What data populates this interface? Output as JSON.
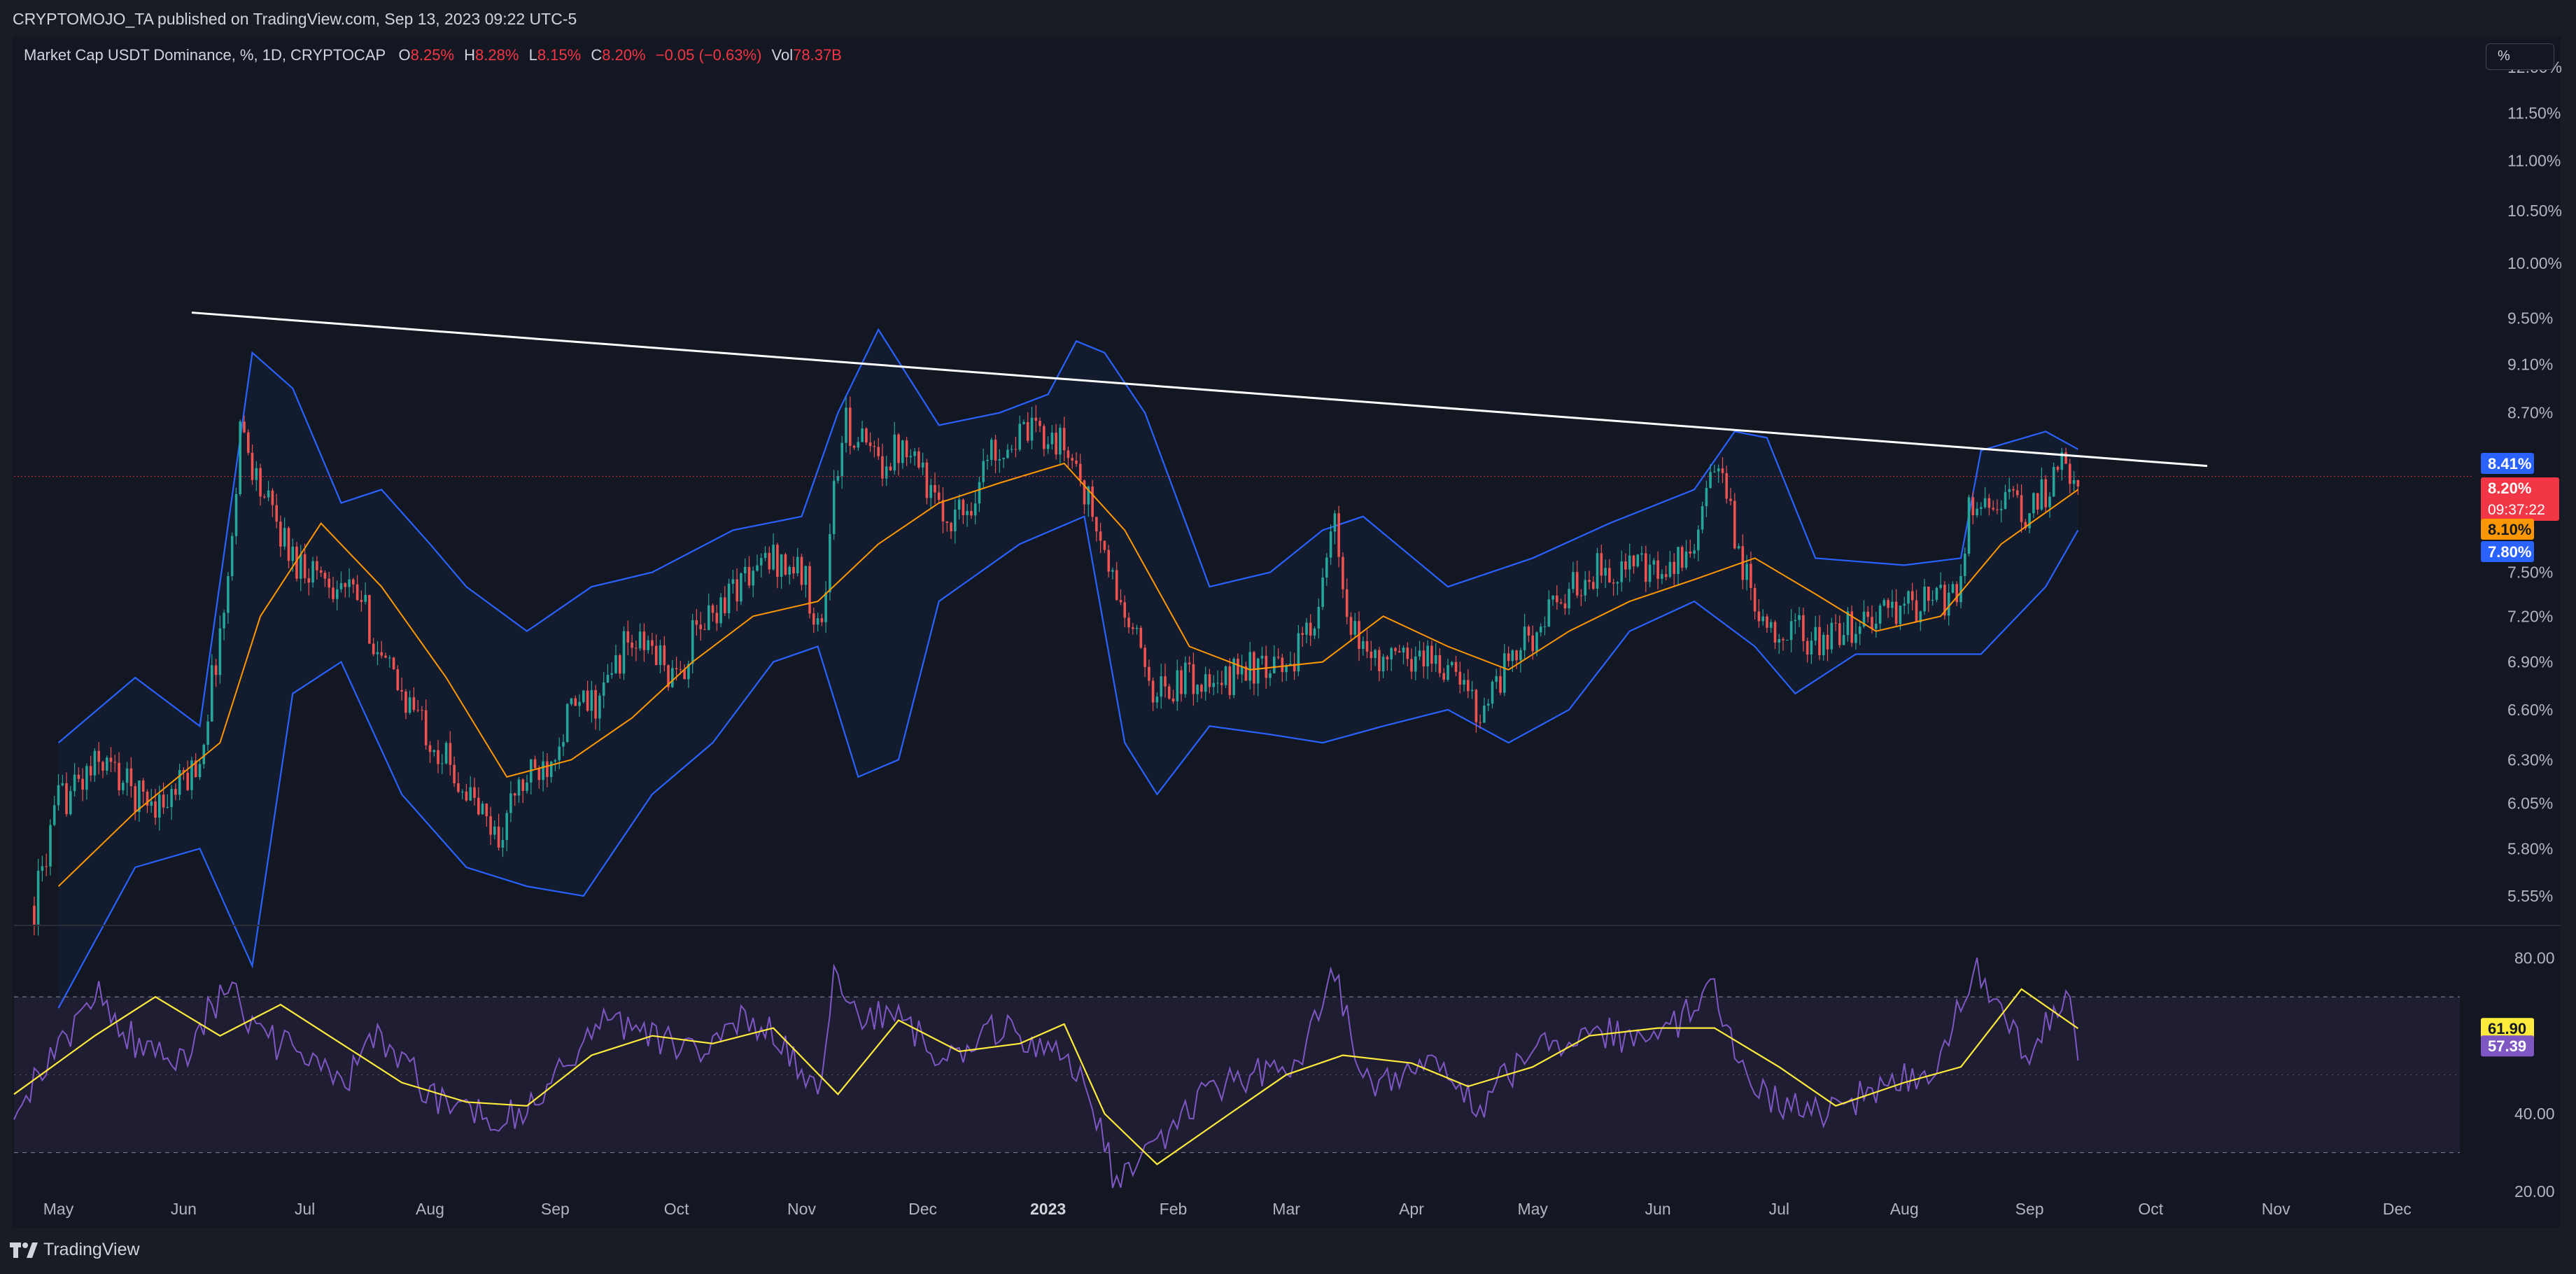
{
  "header": {
    "attribution": "CRYPTOMOJO_TA published on TradingView.com, Sep 13, 2023 09:22 UTC-5"
  },
  "legend": {
    "symbol": "Market Cap USDT Dominance, %, 1D, CRYPTOCAP",
    "open_label": "O",
    "open": "8.25%",
    "high_label": "H",
    "high": "8.28%",
    "low_label": "L",
    "low": "8.15%",
    "close_label": "C",
    "close": "8.20%",
    "change": "−0.05 (−0.63%)",
    "volume_label": "Vol",
    "volume": "78.37B"
  },
  "toolbar": {
    "scale_mode": "%"
  },
  "badges": {
    "upper_band": "8.41%",
    "last_price": "8.20%",
    "countdown": "09:37:22",
    "basis": "8.10%",
    "lower_band": "7.80%",
    "rsi_ma": "61.90",
    "rsi": "57.39"
  },
  "footer": {
    "brand": "TradingView"
  },
  "colors": {
    "background": "#131722",
    "up_candle": "#26a69a",
    "down_candle": "#ef5350",
    "band": "#2962ff",
    "basis": "#ff9800",
    "trendline": "#ffffff",
    "rsi": "#7e57c2",
    "rsi_ma": "#ffeb3b",
    "price_line": "#f23645"
  },
  "chart_data": [
    {
      "type": "candlestick",
      "title": "Market Cap USDT Dominance, %, 1D, CRYPTOCAP",
      "ylabel": "%",
      "y_scale": "log",
      "ylim": [
        5.4,
        12.3
      ],
      "y_ticks": [
        "12.00%",
        "11.50%",
        "11.00%",
        "10.50%",
        "10.00%",
        "9.50%",
        "9.10%",
        "8.70%",
        "7.50%",
        "7.20%",
        "6.90%",
        "6.60%",
        "6.30%",
        "6.05%",
        "5.80%",
        "5.55%"
      ],
      "x_ticks": [
        "May",
        "Jun",
        "Jul",
        "Aug",
        "Sep",
        "Oct",
        "Nov",
        "Dec",
        "2023",
        "Feb",
        "Mar",
        "Apr",
        "May",
        "Jun",
        "Jul",
        "Aug",
        "Sep",
        "Oct",
        "Nov",
        "Dec"
      ],
      "x_range": [
        "2022-04-20",
        "2023-12-20"
      ],
      "close_path": [
        [
          "2022-04-25",
          5.5
        ],
        [
          "2022-05-01",
          6.05
        ],
        [
          "2022-05-12",
          6.3
        ],
        [
          "2022-05-20",
          6.1
        ],
        [
          "2022-05-28",
          6.05
        ],
        [
          "2022-06-05",
          6.3
        ],
        [
          "2022-06-12",
          7.4
        ],
        [
          "2022-06-15",
          8.6
        ],
        [
          "2022-06-20",
          8.1
        ],
        [
          "2022-06-28",
          7.6
        ],
        [
          "2022-07-05",
          7.5
        ],
        [
          "2022-07-15",
          7.3
        ],
        [
          "2022-07-20",
          6.9
        ],
        [
          "2022-07-28",
          6.6
        ],
        [
          "2022-08-05",
          6.3
        ],
        [
          "2022-08-12",
          6.05
        ],
        [
          "2022-08-18",
          5.85
        ],
        [
          "2022-08-22",
          6.1
        ],
        [
          "2022-08-30",
          6.3
        ],
        [
          "2022-09-05",
          6.6
        ],
        [
          "2022-09-12",
          6.65
        ],
        [
          "2022-09-18",
          7.0
        ],
        [
          "2022-09-25",
          7.0
        ],
        [
          "2022-10-01",
          6.75
        ],
        [
          "2022-10-05",
          7.05
        ],
        [
          "2022-10-15",
          7.4
        ],
        [
          "2022-10-25",
          7.6
        ],
        [
          "2022-11-01",
          7.5
        ],
        [
          "2022-11-06",
          7.1
        ],
        [
          "2022-11-09",
          8.1
        ],
        [
          "2022-11-12",
          8.6
        ],
        [
          "2022-11-20",
          8.3
        ],
        [
          "2022-11-28",
          8.5
        ],
        [
          "2022-12-05",
          7.9
        ],
        [
          "2022-12-12",
          7.95
        ],
        [
          "2022-12-18",
          8.4
        ],
        [
          "2022-12-25",
          8.5
        ],
        [
          "2023-01-01",
          8.55
        ],
        [
          "2023-01-08",
          8.3
        ],
        [
          "2023-01-15",
          7.6
        ],
        [
          "2023-01-20",
          7.2
        ],
        [
          "2023-01-28",
          6.7
        ],
        [
          "2023-02-05",
          6.8
        ],
        [
          "2023-02-12",
          6.7
        ],
        [
          "2023-02-18",
          6.9
        ],
        [
          "2023-02-25",
          6.8
        ],
        [
          "2023-03-05",
          7.0
        ],
        [
          "2023-03-10",
          7.4
        ],
        [
          "2023-03-13",
          7.85
        ],
        [
          "2023-03-16",
          7.1
        ],
        [
          "2023-03-25",
          6.9
        ],
        [
          "2023-04-05",
          6.95
        ],
        [
          "2023-04-12",
          6.8
        ],
        [
          "2023-04-18",
          6.6
        ],
        [
          "2023-04-25",
          6.9
        ],
        [
          "2023-05-05",
          7.2
        ],
        [
          "2023-05-15",
          7.5
        ],
        [
          "2023-05-25",
          7.55
        ],
        [
          "2023-06-01",
          7.45
        ],
        [
          "2023-06-08",
          7.6
        ],
        [
          "2023-06-13",
          8.0
        ],
        [
          "2023-06-15",
          8.3
        ],
        [
          "2023-06-20",
          7.8
        ],
        [
          "2023-06-25",
          7.2
        ],
        [
          "2023-07-05",
          7.1
        ],
        [
          "2023-07-12",
          7.0
        ],
        [
          "2023-07-20",
          7.15
        ],
        [
          "2023-08-01",
          7.25
        ],
        [
          "2023-08-10",
          7.3
        ],
        [
          "2023-08-15",
          7.4
        ],
        [
          "2023-08-17",
          8.0
        ],
        [
          "2023-08-24",
          8.05
        ],
        [
          "2023-08-31",
          7.9
        ],
        [
          "2023-09-05",
          8.1
        ],
        [
          "2023-09-10",
          8.3
        ],
        [
          "2023-09-13",
          8.2
        ]
      ],
      "bollinger_upper": [
        [
          "2022-05-01",
          6.4
        ],
        [
          "2022-05-20",
          6.8
        ],
        [
          "2022-06-05",
          6.5
        ],
        [
          "2022-06-18",
          9.2
        ],
        [
          "2022-06-28",
          8.9
        ],
        [
          "2022-07-10",
          8.0
        ],
        [
          "2022-07-20",
          8.1
        ],
        [
          "2022-08-01",
          7.7
        ],
        [
          "2022-08-10",
          7.4
        ],
        [
          "2022-08-25",
          7.1
        ],
        [
          "2022-09-10",
          7.4
        ],
        [
          "2022-09-25",
          7.5
        ],
        [
          "2022-10-15",
          7.8
        ],
        [
          "2022-11-01",
          7.9
        ],
        [
          "2022-11-10",
          8.7
        ],
        [
          "2022-11-20",
          9.4
        ],
        [
          "2022-12-05",
          8.6
        ],
        [
          "2022-12-20",
          8.7
        ],
        [
          "2023-01-01",
          8.85
        ],
        [
          "2023-01-08",
          9.3
        ],
        [
          "2023-01-15",
          9.2
        ],
        [
          "2023-01-25",
          8.7
        ],
        [
          "2023-02-10",
          7.4
        ],
        [
          "2023-02-25",
          7.5
        ],
        [
          "2023-03-10",
          7.8
        ],
        [
          "2023-03-20",
          7.9
        ],
        [
          "2023-04-10",
          7.4
        ],
        [
          "2023-05-01",
          7.6
        ],
        [
          "2023-05-20",
          7.85
        ],
        [
          "2023-06-10",
          8.1
        ],
        [
          "2023-06-20",
          8.55
        ],
        [
          "2023-06-28",
          8.5
        ],
        [
          "2023-07-10",
          7.6
        ],
        [
          "2023-08-01",
          7.55
        ],
        [
          "2023-08-15",
          7.6
        ],
        [
          "2023-08-20",
          8.4
        ],
        [
          "2023-09-05",
          8.55
        ],
        [
          "2023-09-13",
          8.41
        ]
      ],
      "bollinger_basis": [
        [
          "2022-05-01",
          5.6
        ],
        [
          "2022-05-20",
          6.0
        ],
        [
          "2022-06-10",
          6.4
        ],
        [
          "2022-06-20",
          7.2
        ],
        [
          "2022-07-05",
          7.85
        ],
        [
          "2022-07-20",
          7.4
        ],
        [
          "2022-08-05",
          6.8
        ],
        [
          "2022-08-20",
          6.2
        ],
        [
          "2022-09-05",
          6.3
        ],
        [
          "2022-09-20",
          6.55
        ],
        [
          "2022-10-05",
          6.9
        ],
        [
          "2022-10-20",
          7.2
        ],
        [
          "2022-11-05",
          7.3
        ],
        [
          "2022-11-20",
          7.7
        ],
        [
          "2022-12-05",
          8.0
        ],
        [
          "2022-12-20",
          8.15
        ],
        [
          "2023-01-05",
          8.3
        ],
        [
          "2023-01-20",
          7.8
        ],
        [
          "2023-02-05",
          7.0
        ],
        [
          "2023-02-20",
          6.85
        ],
        [
          "2023-03-10",
          6.9
        ],
        [
          "2023-03-25",
          7.2
        ],
        [
          "2023-04-10",
          7.0
        ],
        [
          "2023-04-25",
          6.85
        ],
        [
          "2023-05-10",
          7.1
        ],
        [
          "2023-05-25",
          7.3
        ],
        [
          "2023-06-10",
          7.45
        ],
        [
          "2023-06-25",
          7.6
        ],
        [
          "2023-07-10",
          7.35
        ],
        [
          "2023-07-25",
          7.1
        ],
        [
          "2023-08-10",
          7.2
        ],
        [
          "2023-08-25",
          7.7
        ],
        [
          "2023-09-13",
          8.1
        ]
      ],
      "bollinger_lower": [
        [
          "2022-05-01",
          5.0
        ],
        [
          "2022-05-20",
          5.7
        ],
        [
          "2022-06-05",
          5.8
        ],
        [
          "2022-06-18",
          5.2
        ],
        [
          "2022-06-28",
          6.7
        ],
        [
          "2022-07-10",
          6.9
        ],
        [
          "2022-07-25",
          6.1
        ],
        [
          "2022-08-10",
          5.7
        ],
        [
          "2022-08-25",
          5.6
        ],
        [
          "2022-09-08",
          5.55
        ],
        [
          "2022-09-25",
          6.1
        ],
        [
          "2022-10-10",
          6.4
        ],
        [
          "2022-10-25",
          6.9
        ],
        [
          "2022-11-05",
          7.0
        ],
        [
          "2022-11-15",
          6.2
        ],
        [
          "2022-11-25",
          6.3
        ],
        [
          "2022-12-05",
          7.3
        ],
        [
          "2022-12-25",
          7.7
        ],
        [
          "2023-01-10",
          7.9
        ],
        [
          "2023-01-20",
          6.4
        ],
        [
          "2023-01-28",
          6.1
        ],
        [
          "2023-02-10",
          6.5
        ],
        [
          "2023-02-25",
          6.45
        ],
        [
          "2023-03-10",
          6.4
        ],
        [
          "2023-03-25",
          6.5
        ],
        [
          "2023-04-10",
          6.6
        ],
        [
          "2023-04-25",
          6.4
        ],
        [
          "2023-05-10",
          6.6
        ],
        [
          "2023-05-25",
          7.1
        ],
        [
          "2023-06-10",
          7.3
        ],
        [
          "2023-06-25",
          7.0
        ],
        [
          "2023-07-05",
          6.7
        ],
        [
          "2023-07-20",
          6.95
        ],
        [
          "2023-08-10",
          6.95
        ],
        [
          "2023-08-20",
          6.95
        ],
        [
          "2023-09-05",
          7.4
        ],
        [
          "2023-09-13",
          7.8
        ]
      ],
      "trendline": {
        "from": [
          "2022-06-03",
          9.55
        ],
        "to": [
          "2023-10-15",
          8.28
        ]
      },
      "last_price": 8.2
    },
    {
      "type": "line",
      "title": "RSI",
      "ylim": [
        15,
        88
      ],
      "y_ticks": [
        "80.00",
        "40.00",
        "20.00"
      ],
      "band": [
        30,
        70
      ],
      "midline": 50,
      "rsi": [
        [
          "2022-04-20",
          43
        ],
        [
          "2022-05-01",
          55
        ],
        [
          "2022-05-10",
          72
        ],
        [
          "2022-05-20",
          58
        ],
        [
          "2022-06-01",
          55
        ],
        [
          "2022-06-12",
          74
        ],
        [
          "2022-06-20",
          60
        ],
        [
          "2022-06-30",
          55
        ],
        [
          "2022-07-10",
          48
        ],
        [
          "2022-07-20",
          60
        ],
        [
          "2022-08-01",
          45
        ],
        [
          "2022-08-15",
          40
        ],
        [
          "2022-08-25",
          40
        ],
        [
          "2022-09-05",
          55
        ],
        [
          "2022-09-15",
          65
        ],
        [
          "2022-09-25",
          60
        ],
        [
          "2022-10-05",
          55
        ],
        [
          "2022-10-15",
          65
        ],
        [
          "2022-10-25",
          60
        ],
        [
          "2022-11-05",
          45
        ],
        [
          "2022-11-09",
          78
        ],
        [
          "2022-11-15",
          62
        ],
        [
          "2022-11-25",
          68
        ],
        [
          "2022-12-05",
          52
        ],
        [
          "2022-12-20",
          62
        ],
        [
          "2023-01-01",
          58
        ],
        [
          "2023-01-10",
          48
        ],
        [
          "2023-01-18",
          22
        ],
        [
          "2023-01-25",
          28
        ],
        [
          "2023-02-05",
          42
        ],
        [
          "2023-02-20",
          50
        ],
        [
          "2023-03-05",
          55
        ],
        [
          "2023-03-13",
          76
        ],
        [
          "2023-03-20",
          48
        ],
        [
          "2023-04-05",
          52
        ],
        [
          "2023-04-18",
          42
        ],
        [
          "2023-05-01",
          56
        ],
        [
          "2023-05-15",
          62
        ],
        [
          "2023-06-01",
          58
        ],
        [
          "2023-06-15",
          72
        ],
        [
          "2023-06-25",
          45
        ],
        [
          "2023-07-10",
          40
        ],
        [
          "2023-07-25",
          46
        ],
        [
          "2023-08-10",
          52
        ],
        [
          "2023-08-18",
          78
        ],
        [
          "2023-08-25",
          66
        ],
        [
          "2023-09-01",
          55
        ],
        [
          "2023-09-10",
          70
        ],
        [
          "2023-09-13",
          57.39
        ]
      ],
      "rsi_ma": [
        [
          "2022-04-20",
          45
        ],
        [
          "2022-05-10",
          60
        ],
        [
          "2022-05-25",
          70
        ],
        [
          "2022-06-10",
          60
        ],
        [
          "2022-06-25",
          68
        ],
        [
          "2022-07-10",
          58
        ],
        [
          "2022-07-25",
          48
        ],
        [
          "2022-08-10",
          43
        ],
        [
          "2022-08-25",
          42
        ],
        [
          "2022-09-10",
          55
        ],
        [
          "2022-09-25",
          60
        ],
        [
          "2022-10-10",
          58
        ],
        [
          "2022-10-25",
          62
        ],
        [
          "2022-11-10",
          45
        ],
        [
          "2022-11-25",
          64
        ],
        [
          "2022-12-10",
          56
        ],
        [
          "2022-12-25",
          58
        ],
        [
          "2023-01-05",
          63
        ],
        [
          "2023-01-15",
          40
        ],
        [
          "2023-01-28",
          27
        ],
        [
          "2023-02-15",
          40
        ],
        [
          "2023-03-01",
          50
        ],
        [
          "2023-03-15",
          55
        ],
        [
          "2023-04-01",
          53
        ],
        [
          "2023-04-15",
          47
        ],
        [
          "2023-05-01",
          52
        ],
        [
          "2023-05-15",
          60
        ],
        [
          "2023-06-01",
          62
        ],
        [
          "2023-06-15",
          62
        ],
        [
          "2023-07-01",
          52
        ],
        [
          "2023-07-15",
          42
        ],
        [
          "2023-08-01",
          48
        ],
        [
          "2023-08-15",
          52
        ],
        [
          "2023-08-30",
          72
        ],
        [
          "2023-09-13",
          61.9
        ]
      ]
    }
  ]
}
